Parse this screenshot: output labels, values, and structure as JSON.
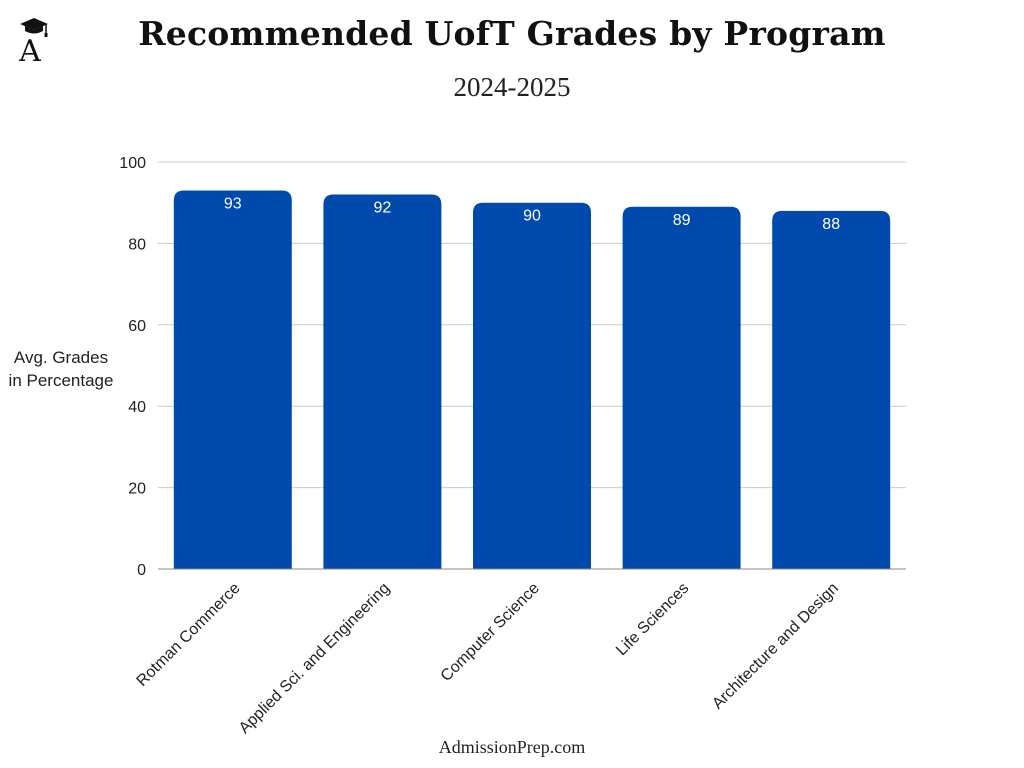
{
  "header": {
    "title": "Recommended UofT Grades by Program",
    "subtitle": "2024-2025"
  },
  "logo": {
    "letter": "A",
    "icon": "graduation-cap-icon"
  },
  "footer": {
    "source": "AdmissionPrep.com"
  },
  "colors": {
    "bar": "#004aad",
    "grid": "#cccccc",
    "axis": "#888888"
  },
  "chart_data": {
    "type": "bar",
    "title": "Recommended UofT Grades by Program",
    "subtitle": "2024-2025",
    "xlabel": "",
    "ylabel_lines": [
      "Avg. Grades",
      "in Percentage"
    ],
    "categories": [
      "Rotman Commerce",
      "Applied Sci. and Engineering",
      "Computer Science",
      "Life Sciences",
      "Architecture and Design"
    ],
    "values": [
      93,
      92,
      90,
      89,
      88
    ],
    "data_labels": [
      "93",
      "92",
      "90",
      "89",
      "88"
    ],
    "ylim": [
      0,
      100
    ],
    "yticks": [
      0,
      20,
      40,
      60,
      80,
      100
    ],
    "ytick_labels": [
      "0",
      "20",
      "40",
      "60",
      "80",
      "100"
    ],
    "grid": true,
    "legend": "none"
  }
}
